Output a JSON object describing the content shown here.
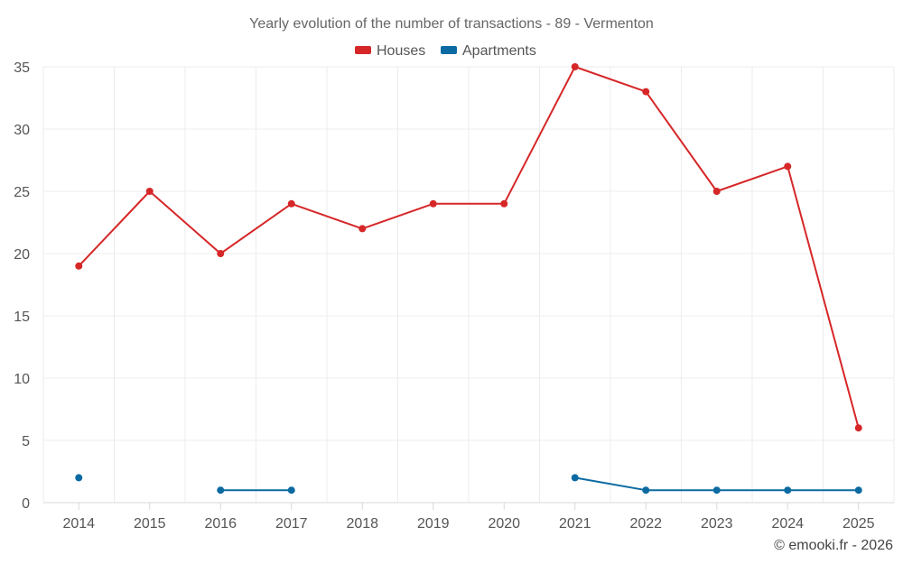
{
  "chart_data": {
    "type": "line",
    "title": "Yearly evolution of the number of transactions - 89 - Vermenton",
    "xlabel": "",
    "ylabel": "",
    "categories": [
      "2014",
      "2015",
      "2016",
      "2017",
      "2018",
      "2019",
      "2020",
      "2021",
      "2022",
      "2023",
      "2024",
      "2025"
    ],
    "ylim": [
      0,
      35
    ],
    "yticks": [
      0,
      5,
      10,
      15,
      20,
      25,
      30,
      35
    ],
    "grid": true,
    "legend_position": "top-center",
    "series": [
      {
        "name": "Houses",
        "color": "#d62728",
        "values": [
          19,
          25,
          20,
          24,
          22,
          24,
          24,
          35,
          33,
          25,
          27,
          6
        ]
      },
      {
        "name": "Apartments",
        "color": "#0b6aa2",
        "values": [
          2,
          null,
          1,
          1,
          null,
          null,
          null,
          2,
          1,
          1,
          1,
          1
        ]
      }
    ],
    "credit": "© emooki.fr - 2026"
  }
}
